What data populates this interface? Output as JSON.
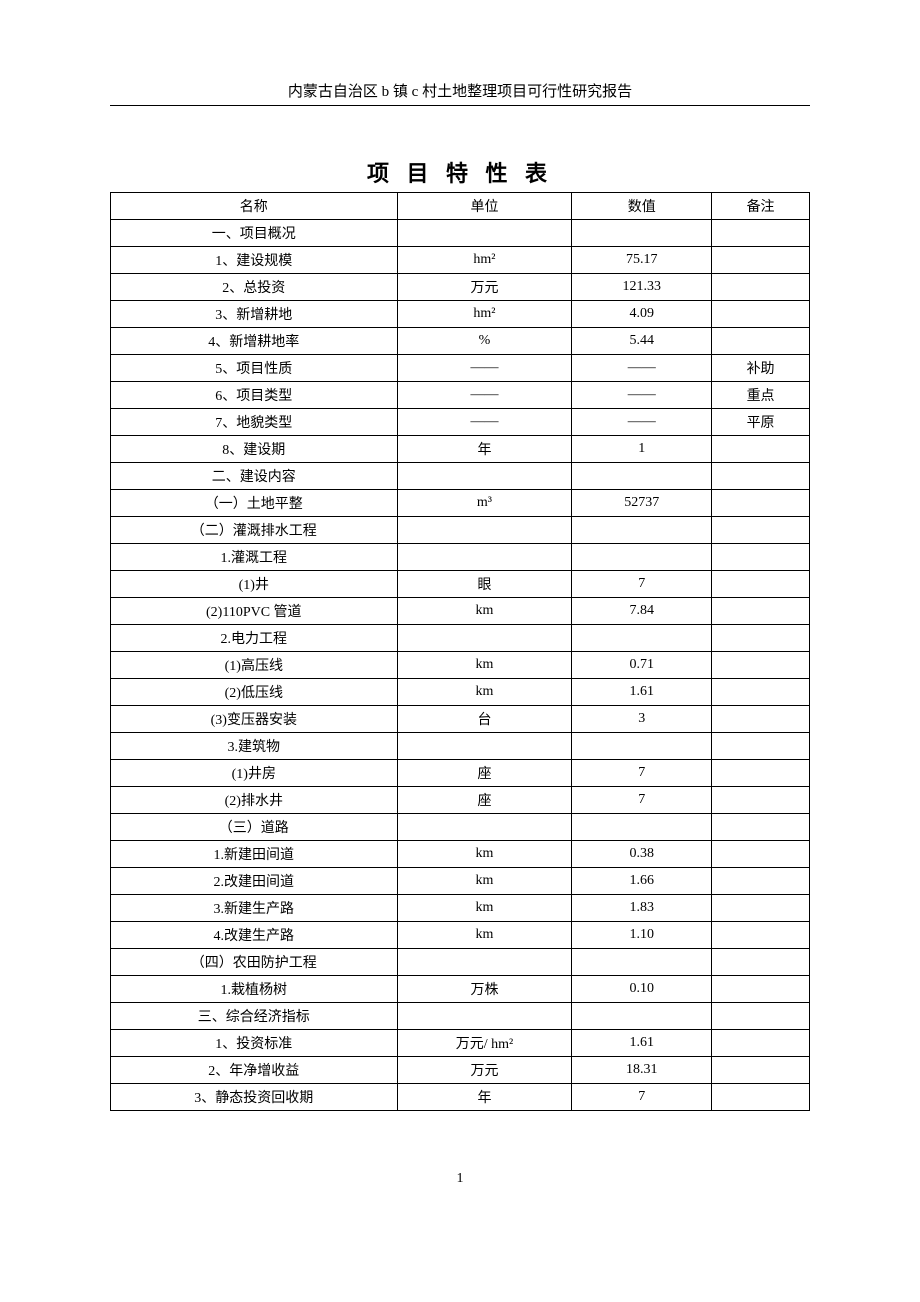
{
  "header": "内蒙古自治区 b 镇 c 村土地整理项目可行性研究报告",
  "title": "项 目 特 性 表",
  "columns": {
    "name": "名称",
    "unit": "单位",
    "value": "数值",
    "note": "备注"
  },
  "rows": [
    {
      "name": "一、项目概况",
      "unit": "",
      "value": "",
      "note": ""
    },
    {
      "name": "1、建设规模",
      "unit": "hm²",
      "value": "75.17",
      "note": ""
    },
    {
      "name": "2、总投资",
      "unit": "万元",
      "value": "121.33",
      "note": ""
    },
    {
      "name": "3、新增耕地",
      "unit": "hm²",
      "value": "4.09",
      "note": ""
    },
    {
      "name": "4、新增耕地率",
      "unit": "%",
      "value": "5.44",
      "note": ""
    },
    {
      "name": "5、项目性质",
      "unit": "——",
      "value": "——",
      "note": "补助"
    },
    {
      "name": "6、项目类型",
      "unit": "——",
      "value": "——",
      "note": "重点"
    },
    {
      "name": "7、地貌类型",
      "unit": "——",
      "value": "——",
      "note": "平原"
    },
    {
      "name": "8、建设期",
      "unit": "年",
      "value": "1",
      "note": ""
    },
    {
      "name": "二、建设内容",
      "unit": "",
      "value": "",
      "note": ""
    },
    {
      "name": "（一）土地平整",
      "unit": "m³",
      "value": "52737",
      "note": ""
    },
    {
      "name": "（二）灌溉排水工程",
      "unit": "",
      "value": "",
      "note": ""
    },
    {
      "name": "1.灌溉工程",
      "unit": "",
      "value": "",
      "note": ""
    },
    {
      "name": "(1)井",
      "unit": "眼",
      "value": "7",
      "note": ""
    },
    {
      "name": "(2)110PVC 管道",
      "unit": "km",
      "value": "7.84",
      "note": ""
    },
    {
      "name": "2.电力工程",
      "unit": "",
      "value": "",
      "note": ""
    },
    {
      "name": "(1)高压线",
      "unit": "km",
      "value": "0.71",
      "note": ""
    },
    {
      "name": "(2)低压线",
      "unit": "km",
      "value": "1.61",
      "note": ""
    },
    {
      "name": "(3)变压器安装",
      "unit": "台",
      "value": "3",
      "note": ""
    },
    {
      "name": "3.建筑物",
      "unit": "",
      "value": "",
      "note": ""
    },
    {
      "name": "(1)井房",
      "unit": "座",
      "value": "7",
      "note": ""
    },
    {
      "name": "(2)排水井",
      "unit": "座",
      "value": "7",
      "note": ""
    },
    {
      "name": "（三）道路",
      "unit": "",
      "value": "",
      "note": ""
    },
    {
      "name": "1.新建田间道",
      "unit": "km",
      "value": "0.38",
      "note": ""
    },
    {
      "name": "2.改建田间道",
      "unit": "km",
      "value": "1.66",
      "note": ""
    },
    {
      "name": "3.新建生产路",
      "unit": "km",
      "value": "1.83",
      "note": ""
    },
    {
      "name": "4.改建生产路",
      "unit": "km",
      "value": "1.10",
      "note": ""
    },
    {
      "name": "（四）农田防护工程",
      "unit": "",
      "value": "",
      "note": ""
    },
    {
      "name": "1.栽植杨树",
      "unit": "万株",
      "value": "0.10",
      "note": ""
    },
    {
      "name": "三、综合经济指标",
      "unit": "",
      "value": "",
      "note": ""
    },
    {
      "name": "1、投资标准",
      "unit": "万元/ hm²",
      "value": "1.61",
      "note": ""
    },
    {
      "name": "2、年净增收益",
      "unit": "万元",
      "value": "18.31",
      "note": ""
    },
    {
      "name": "3、静态投资回收期",
      "unit": "年",
      "value": "7",
      "note": ""
    }
  ],
  "page_number": "1"
}
